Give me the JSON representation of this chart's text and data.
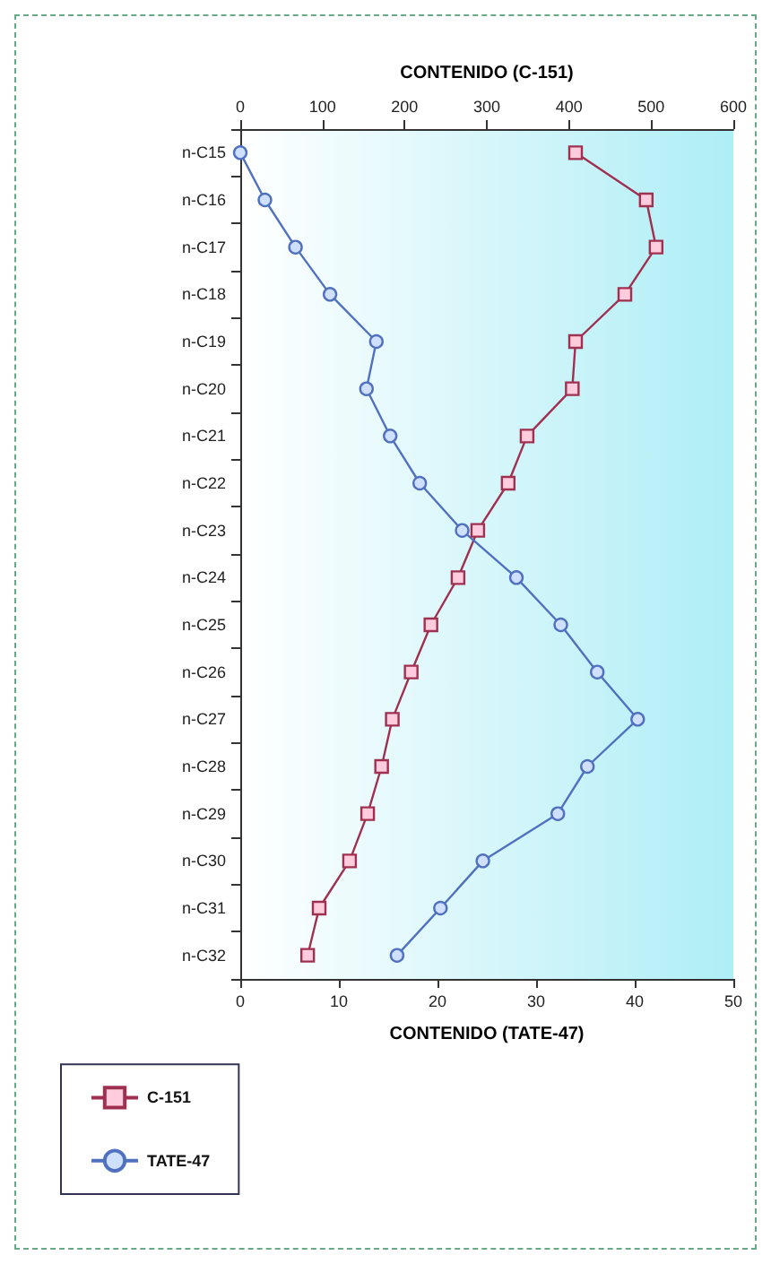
{
  "chart_data": {
    "type": "line",
    "orientation": "horizontal",
    "xlabel": "CONTENIDO (TATE-47)",
    "x2label": "CONTENIDO (C-151)",
    "categories": [
      "n-C15",
      "n-C16",
      "n-C17",
      "n-C18",
      "n-C19",
      "n-C20",
      "n-C21",
      "n-C22",
      "n-C23",
      "n-C24",
      "n-C25",
      "n-C26",
      "n-C27",
      "n-C28",
      "n-C29",
      "n-C30",
      "n-C31",
      "n-C32"
    ],
    "series": [
      {
        "name": "C-151",
        "color": "#a03050",
        "axis": "x2",
        "marker": "square",
        "values": [
          408,
          494,
          506,
          468,
          408,
          404,
          349,
          326,
          289,
          265,
          232,
          208,
          185,
          172,
          155,
          133,
          96,
          82
        ]
      },
      {
        "name": "TATE-47",
        "color": "#5070c0",
        "marker": "circle",
        "values": [
          0,
          2.5,
          5.6,
          9.1,
          13.8,
          12.8,
          15.2,
          18.2,
          22.5,
          28,
          32.5,
          36.2,
          40.3,
          35.2,
          32.2,
          24.6,
          20.3,
          15.9
        ]
      }
    ],
    "xlim": [
      0,
      50
    ],
    "xticks": [
      0,
      10,
      20,
      30,
      40,
      50
    ],
    "x2lim": [
      0,
      600
    ],
    "x2ticks": [
      0,
      100,
      200,
      300,
      400,
      500,
      600
    ],
    "grid": false,
    "legend": "bottom left",
    "line_style": "solid"
  }
}
